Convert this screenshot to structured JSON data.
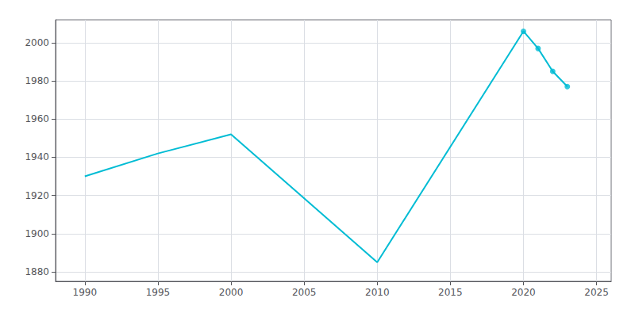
{
  "chart_data": {
    "type": "line",
    "series": [
      {
        "type": "line",
        "color": "#00BCD4",
        "x": [
          1990,
          1995,
          2000,
          2010,
          2020,
          2021,
          2022,
          2023
        ],
        "values": [
          1930,
          1942,
          1952,
          1885,
          2006,
          1997,
          1985,
          1977
        ]
      },
      {
        "type": "scatter",
        "marker": "circle",
        "color": "#00BCD4",
        "x": [
          2020,
          2021,
          2022,
          2023
        ],
        "values": [
          2006,
          1997,
          1985,
          1977
        ]
      }
    ],
    "xlim": [
      1988,
      2026
    ],
    "xticks": [
      1990,
      1995,
      2000,
      2005,
      2010,
      2015,
      2020,
      2025
    ],
    "ylim": [
      1875,
      2012
    ],
    "yticks": [
      1880,
      1900,
      1920,
      1940,
      1960,
      1980,
      2000
    ],
    "grid": true
  }
}
